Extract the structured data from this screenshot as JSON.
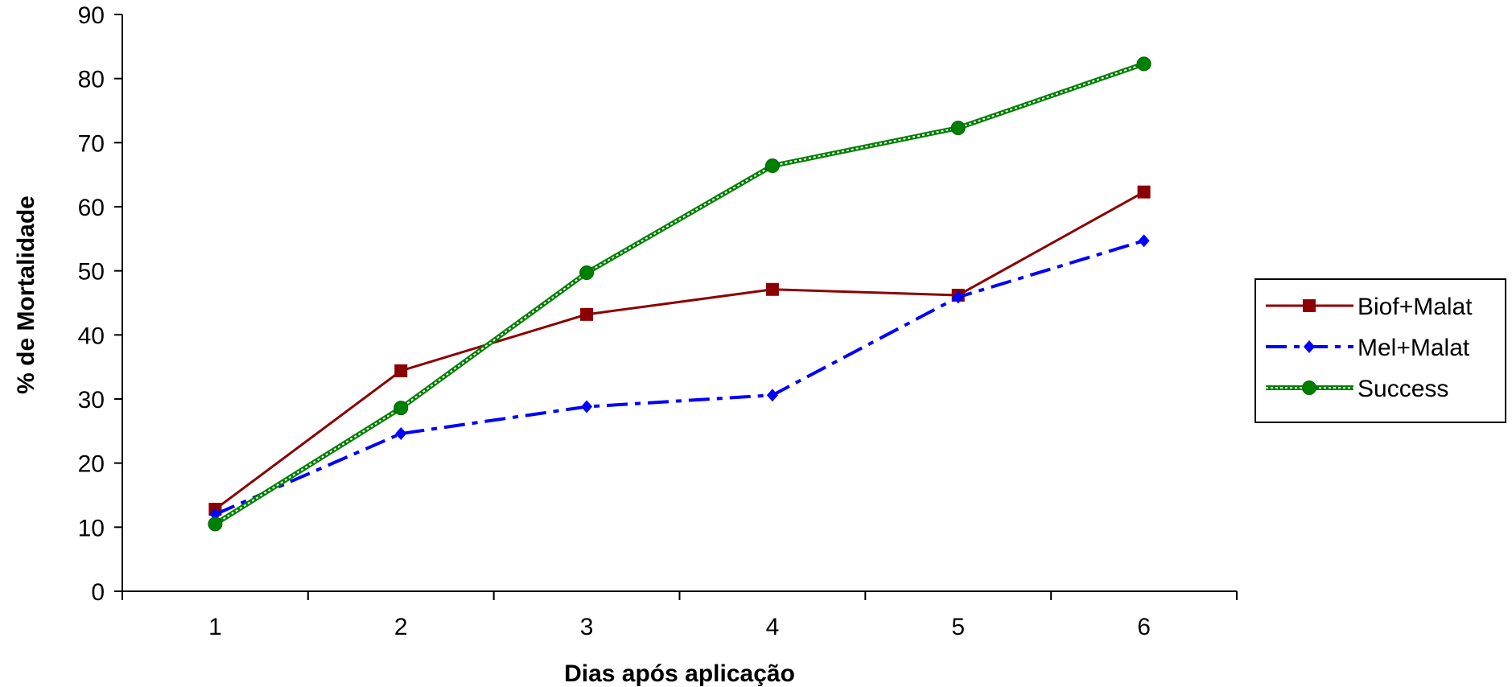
{
  "chart_data": {
    "type": "line",
    "title": "",
    "xlabel": "Dias após aplicação",
    "ylabel": "% de Mortalidade",
    "categories": [
      "1",
      "2",
      "3",
      "4",
      "5",
      "6"
    ],
    "ylim": [
      0,
      90
    ],
    "yticks": [
      "0",
      "10",
      "20",
      "30",
      "40",
      "50",
      "60",
      "70",
      "80",
      "90"
    ],
    "grid": false,
    "legend_position": "right",
    "series": [
      {
        "name": "Biof+Malat",
        "color": "#8b0000",
        "marker": "square",
        "line_style": "solid",
        "values": [
          12.8,
          34.4,
          43.2,
          47.1,
          46.2,
          62.3
        ]
      },
      {
        "name": "Mel+Malat",
        "color": "#0000ff",
        "marker": "diamond",
        "line_style": "dash-dot",
        "values": [
          12.0,
          24.6,
          28.8,
          30.6,
          45.9,
          54.7
        ]
      },
      {
        "name": "Success",
        "color": "#008000",
        "marker": "circle",
        "line_style": "double",
        "values": [
          10.5,
          28.6,
          49.7,
          66.4,
          72.3,
          82.3
        ]
      }
    ]
  }
}
